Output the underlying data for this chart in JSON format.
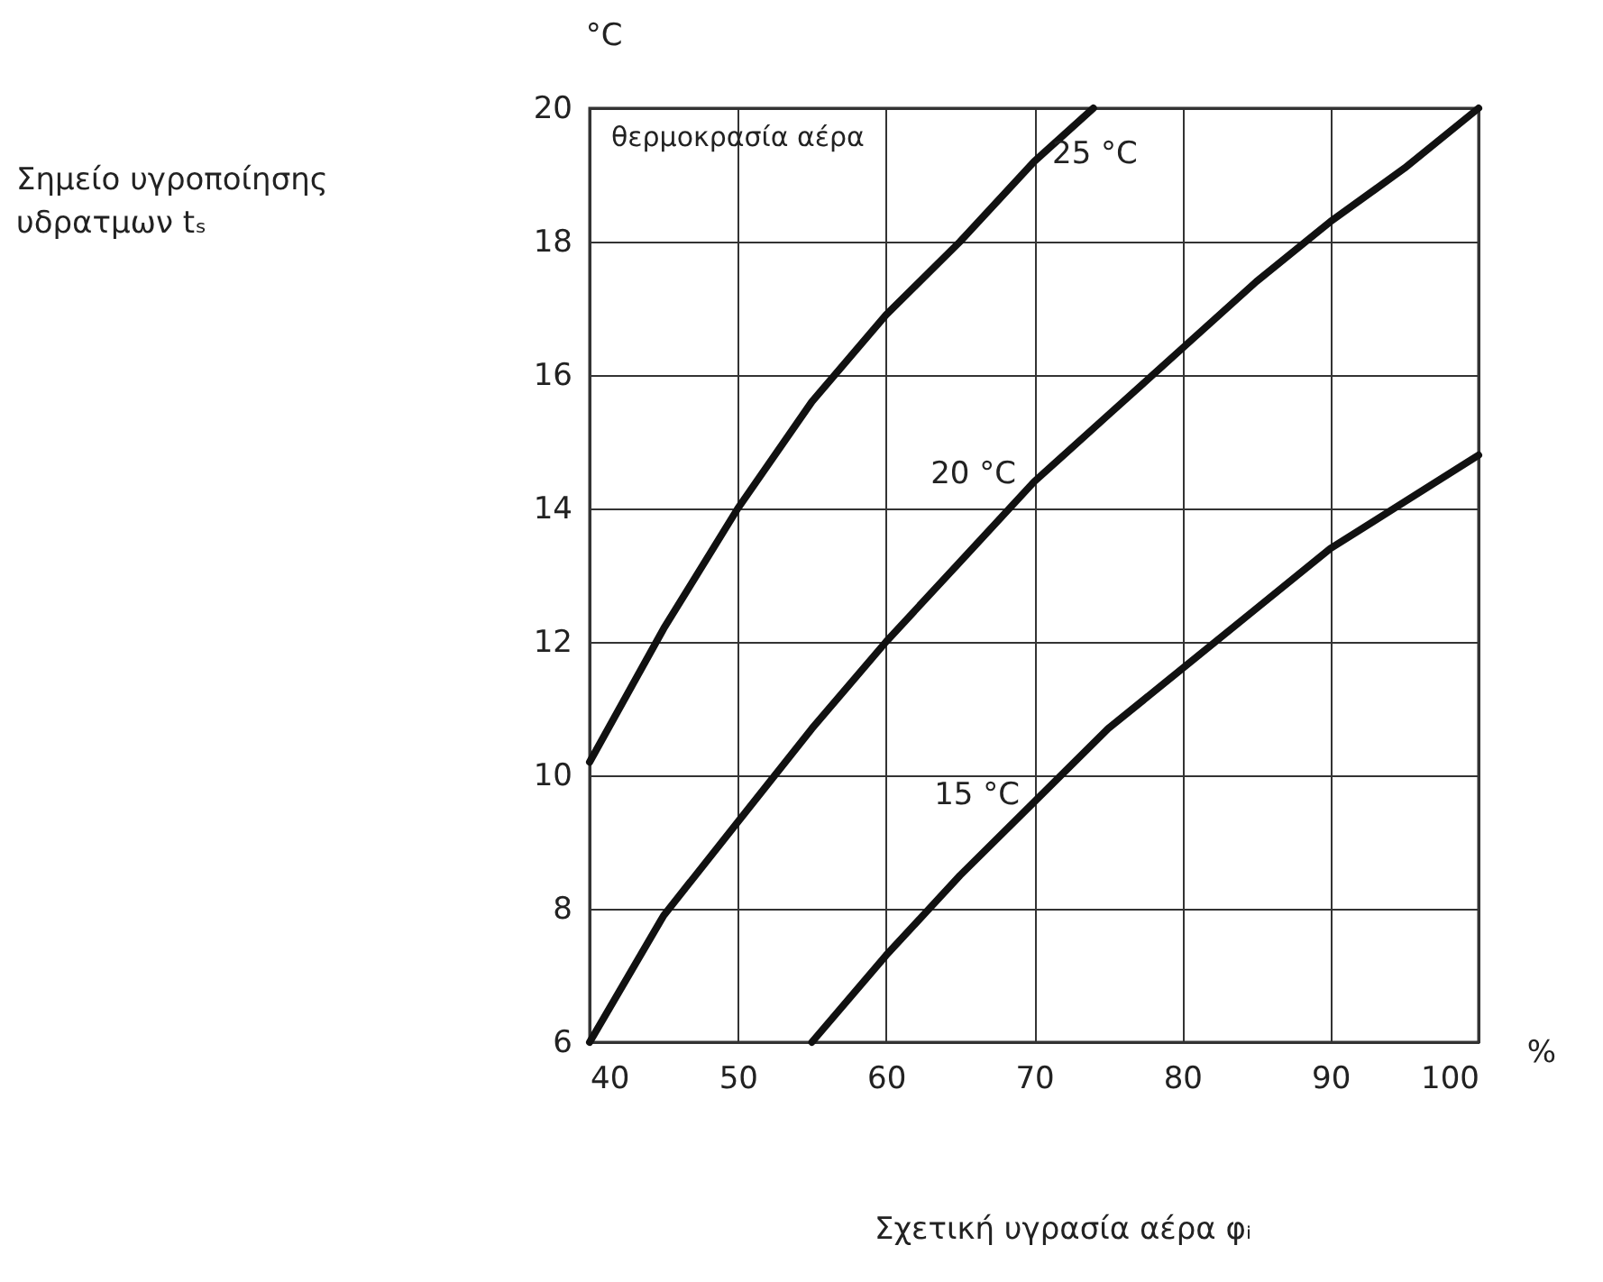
{
  "chart_data": {
    "type": "line",
    "xlabel": "Σχετική υγρασία αέρα φᵢ",
    "legend_title": "θερμοκρασία αέρα",
    "annotations": [
      "°C",
      "%",
      "Σημείο υγροποίησης\n υδρατμων tₛ"
    ],
    "xlim": [
      40,
      100
    ],
    "xticks": [
      40,
      50,
      60,
      70,
      80,
      90,
      100
    ],
    "ylim": [
      6,
      20
    ],
    "yticks": [
      6,
      8,
      10,
      12,
      14,
      16,
      18,
      20
    ],
    "grid": true,
    "marker": "none",
    "line_style": "solid",
    "series": [
      {
        "name": "25 °C",
        "color": "#111111",
        "x": [
          40,
          45,
          50,
          55,
          60,
          65,
          70,
          74
        ],
        "values": [
          10.2,
          12.2,
          14.0,
          15.6,
          16.9,
          18.0,
          19.2,
          20.0
        ]
      },
      {
        "name": "20 °C",
        "color": "#111111",
        "x": [
          40,
          45,
          50,
          55,
          60,
          65,
          70,
          75,
          80,
          85,
          90,
          95,
          100
        ],
        "values": [
          6.0,
          7.9,
          9.3,
          10.7,
          12.0,
          13.2,
          14.4,
          15.4,
          16.4,
          17.4,
          18.3,
          19.1,
          20.0
        ]
      },
      {
        "name": "15 °C",
        "color": "#111111",
        "x": [
          55,
          60,
          65,
          70,
          75,
          80,
          85,
          90,
          95,
          100
        ],
        "values": [
          6.0,
          7.3,
          8.5,
          9.6,
          10.7,
          11.6,
          12.5,
          13.4,
          14.1,
          14.8
        ]
      }
    ]
  }
}
